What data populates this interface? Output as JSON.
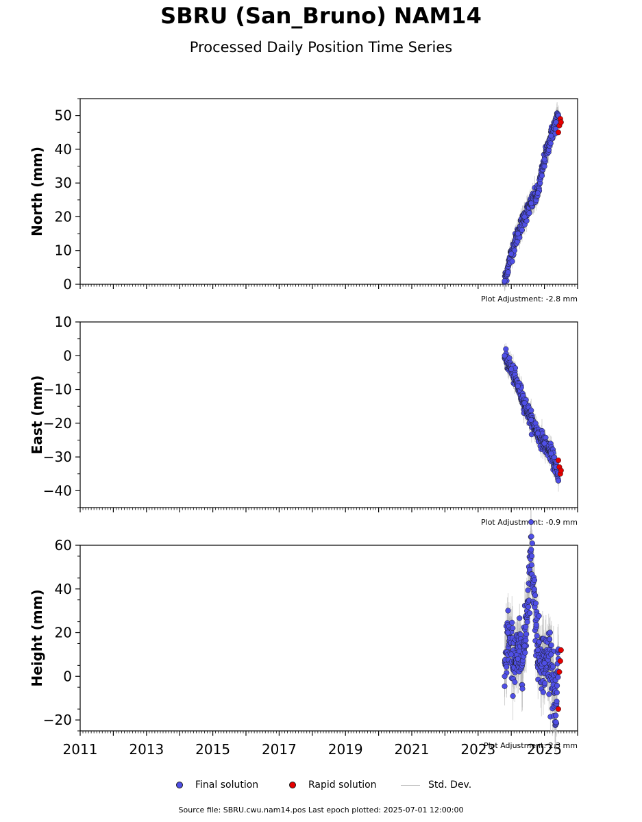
{
  "title": "SBRU (San_Bruno) NAM14",
  "subtitle": "Processed Daily Position Time Series",
  "footer": "Source file: SBRU.cwu.nam14.pos  Last epoch plotted: 2025-07-01 12:00:00",
  "legend": {
    "final_label": "Final solution",
    "rapid_label": "Rapid solution",
    "std_label": "Std. Dev."
  },
  "colors": {
    "final": "#4f4fe6",
    "rapid": "#e60000",
    "std": "#b0b0b0",
    "marker_edge": "#1a1a1a"
  },
  "chart_data": [
    {
      "type": "scatter",
      "component": "north",
      "ylabel": "North (mm)",
      "adjustment": "Plot Adjustment: -2.8 mm",
      "xlim": [
        2011,
        2026
      ],
      "ylim": [
        0,
        55
      ],
      "yticks": [
        0,
        10,
        20,
        30,
        40,
        50
      ],
      "series": [
        {
          "name": "Final solution",
          "x": [
            2023.8,
            2024.0,
            2024.2,
            2024.4,
            2024.6,
            2024.8,
            2025.0,
            2025.2,
            2025.35,
            2025.42
          ],
          "y": [
            1,
            9,
            15,
            20,
            24,
            27,
            37,
            44,
            48,
            50
          ]
        },
        {
          "name": "Rapid solution",
          "x": [
            2025.42,
            2025.45,
            2025.48,
            2025.5
          ],
          "y": [
            45,
            47,
            49,
            48
          ]
        }
      ]
    },
    {
      "type": "scatter",
      "component": "east",
      "ylabel": "East (mm)",
      "adjustment": "Plot Adjustment: -0.9 mm",
      "xlim": [
        2011,
        2026
      ],
      "ylim": [
        -45,
        10
      ],
      "yticks": [
        -40,
        -30,
        -20,
        -10,
        0,
        10
      ],
      "series": [
        {
          "name": "Final solution",
          "x": [
            2023.8,
            2024.0,
            2024.2,
            2024.4,
            2024.6,
            2024.8,
            2025.0,
            2025.2,
            2025.35,
            2025.42
          ],
          "y": [
            0,
            -4,
            -9,
            -14,
            -19,
            -23,
            -26,
            -29,
            -33,
            -37
          ]
        },
        {
          "name": "Rapid solution",
          "x": [
            2025.42,
            2025.45,
            2025.48,
            2025.5
          ],
          "y": [
            -31,
            -33,
            -35,
            -34
          ]
        }
      ]
    },
    {
      "type": "scatter",
      "component": "height",
      "ylabel": "Height (mm)",
      "adjustment": "Plot Adjustment: 2.3 mm",
      "xlim": [
        2011,
        2026
      ],
      "ylim": [
        -25,
        60
      ],
      "yticks": [
        -20,
        0,
        20,
        40,
        60
      ],
      "xticks": [
        "2011",
        "2013",
        "2015",
        "2017",
        "2019",
        "2021",
        "2023",
        "2025"
      ],
      "series": [
        {
          "name": "Final solution",
          "x": [
            2023.8,
            2023.9,
            2024.0,
            2024.2,
            2024.4,
            2024.6,
            2024.8,
            2025.0,
            2025.2,
            2025.35,
            2025.42
          ],
          "y": [
            0,
            20,
            10,
            8,
            14,
            58,
            12,
            6,
            10,
            -21,
            8
          ]
        },
        {
          "name": "Rapid solution",
          "x": [
            2025.42,
            2025.45,
            2025.48,
            2025.5
          ],
          "y": [
            -15,
            2,
            7,
            12
          ]
        }
      ]
    }
  ]
}
